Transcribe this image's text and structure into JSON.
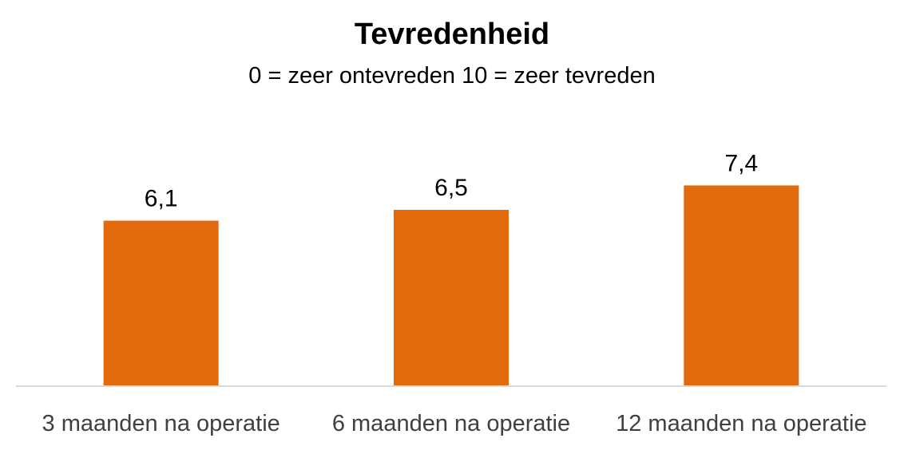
{
  "chart_data": {
    "type": "bar",
    "title": "Tevredenheid",
    "subtitle": "0 = zeer ontevreden  10 = zeer tevreden",
    "categories": [
      "3 maanden na operatie",
      "6 maanden na operatie",
      "12 maanden na operatie"
    ],
    "values": [
      6.1,
      6.5,
      7.4
    ],
    "value_labels": [
      "6,1",
      "6,5",
      "7,4"
    ],
    "xlabel": "",
    "ylabel": "",
    "ylim": [
      0,
      10
    ],
    "grid": false,
    "legend": "none",
    "colors": {
      "bar": "#E26A0C",
      "axis": "#D9D9D9",
      "category_text": "#404040",
      "value_text": "#000000"
    }
  }
}
